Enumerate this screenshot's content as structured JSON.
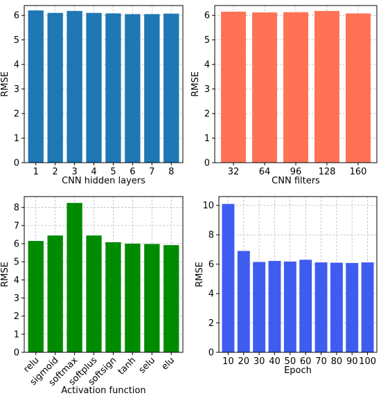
{
  "chart_data": [
    {
      "type": "bar",
      "categories": [
        "1",
        "2",
        "3",
        "4",
        "5",
        "6",
        "7",
        "8"
      ],
      "values": [
        6.2,
        6.1,
        6.18,
        6.1,
        6.08,
        6.05,
        6.05,
        6.07
      ],
      "xlabel": "CNN hidden layers",
      "ylabel": "RMSE",
      "ylim": [
        0,
        6.4
      ],
      "yticks": [
        0,
        1,
        2,
        3,
        4,
        5,
        6
      ],
      "color": "#1f77b4",
      "grid": true,
      "rotate_xticks": false
    },
    {
      "type": "bar",
      "categories": [
        "32",
        "64",
        "96",
        "128",
        "160"
      ],
      "values": [
        6.15,
        6.12,
        6.13,
        6.18,
        6.08
      ],
      "xlabel": "CNN filters",
      "ylabel": "RMSE",
      "ylim": [
        0,
        6.4
      ],
      "yticks": [
        0,
        1,
        2,
        3,
        4,
        5,
        6
      ],
      "color": "#ff7256",
      "grid": true,
      "rotate_xticks": false
    },
    {
      "type": "bar",
      "categories": [
        "relu",
        "sigmoid",
        "softmax",
        "softplus",
        "softsign",
        "tanh",
        "selu",
        "elu"
      ],
      "values": [
        6.15,
        6.45,
        8.25,
        6.45,
        6.08,
        6.0,
        5.98,
        5.92
      ],
      "xlabel": "Activation function",
      "ylabel": "RMSE",
      "ylim": [
        0,
        8.6
      ],
      "yticks": [
        0,
        1,
        2,
        3,
        4,
        5,
        6,
        7,
        8
      ],
      "color": "#008b00",
      "grid": true,
      "rotate_xticks": true
    },
    {
      "type": "bar",
      "categories": [
        "10",
        "20",
        "30",
        "40",
        "50",
        "60",
        "70",
        "80",
        "90",
        "100"
      ],
      "values": [
        10.1,
        6.9,
        6.15,
        6.22,
        6.18,
        6.3,
        6.12,
        6.1,
        6.08,
        6.12
      ],
      "xlabel": "Epoch",
      "ylabel": "RMSE",
      "ylim": [
        0,
        10.6
      ],
      "yticks": [
        0,
        2,
        4,
        6,
        8,
        10
      ],
      "color": "#3f5cf0",
      "grid": true,
      "rotate_xticks": false
    }
  ]
}
